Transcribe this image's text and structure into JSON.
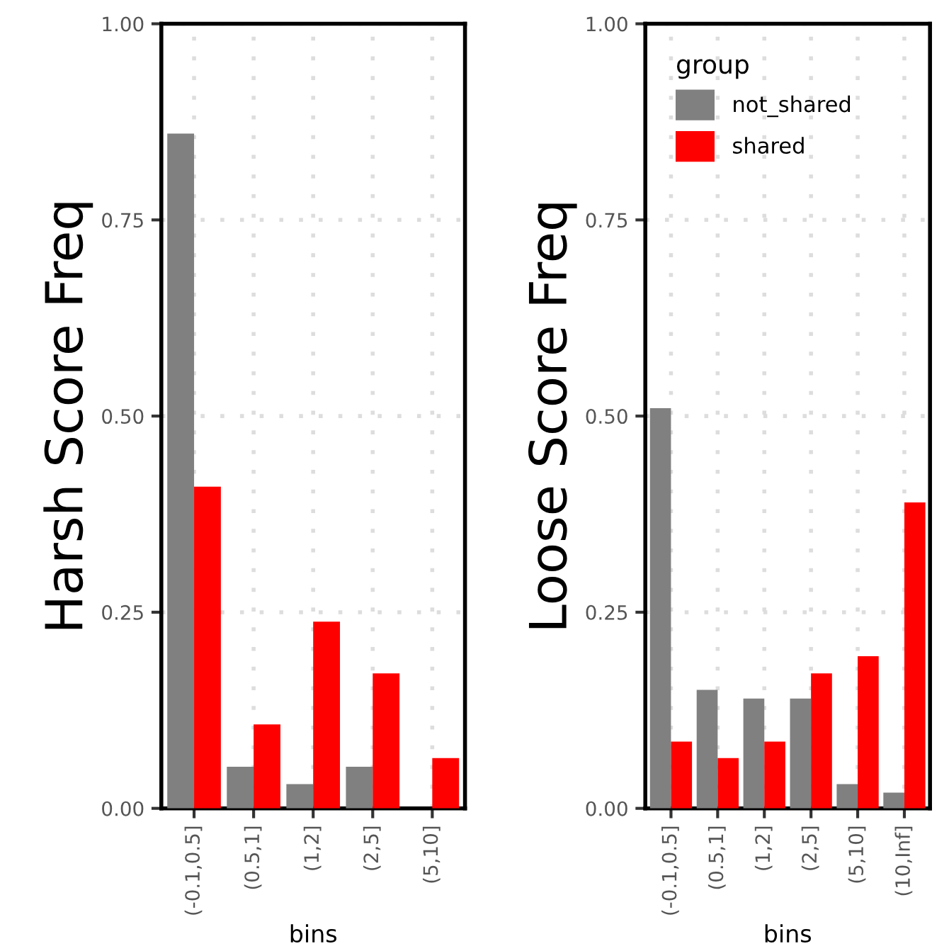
{
  "chart_data": [
    {
      "type": "bar",
      "ylabel": "Harsh Score Freq",
      "xlabel": "bins",
      "categories": [
        "(-0.1,0.5]",
        "(0.5,1]",
        "(1,2]",
        "(2,5]",
        "(5,10]"
      ],
      "series": [
        {
          "color": "#808080",
          "values": [
            0.86,
            0.053,
            0.031,
            0.053,
            null
          ]
        },
        {
          "color": "#ff0000",
          "values": [
            0.41,
            0.107,
            0.238,
            0.172,
            0.064
          ]
        }
      ],
      "ylim": [
        0,
        1
      ],
      "yticks": [
        {
          "value": 0,
          "label": "0.00"
        },
        {
          "value": 0.25,
          "label": "0.25"
        },
        {
          "value": 0.5,
          "label": "0.50"
        },
        {
          "value": 0.75,
          "label": "0.75"
        },
        {
          "value": 1,
          "label": "1.00"
        }
      ],
      "grid": true,
      "legend": false
    },
    {
      "type": "bar",
      "ylabel": "Loose Score Freq",
      "xlabel": "bins",
      "legend_title": "group",
      "categories": [
        "(-0.1,0.5]",
        "(0.5,1]",
        "(1,2]",
        "(2,5]",
        "(5,10]",
        "(10,Inf]"
      ],
      "series": [
        {
          "name": "not_shared",
          "color": "#808080",
          "values": [
            0.51,
            0.151,
            0.14,
            0.14,
            0.031,
            0.02
          ]
        },
        {
          "name": "shared",
          "color": "#ff0000",
          "values": [
            0.085,
            0.064,
            0.085,
            0.172,
            0.194,
            0.39
          ]
        }
      ],
      "ylim": [
        0,
        1
      ],
      "yticks": [
        {
          "value": 0,
          "label": "0.00"
        },
        {
          "value": 0.25,
          "label": "0.25"
        },
        {
          "value": 0.5,
          "label": "0.50"
        },
        {
          "value": 0.75,
          "label": "0.75"
        },
        {
          "value": 1,
          "label": "1.00"
        }
      ],
      "grid": true,
      "legend": "top left"
    }
  ]
}
